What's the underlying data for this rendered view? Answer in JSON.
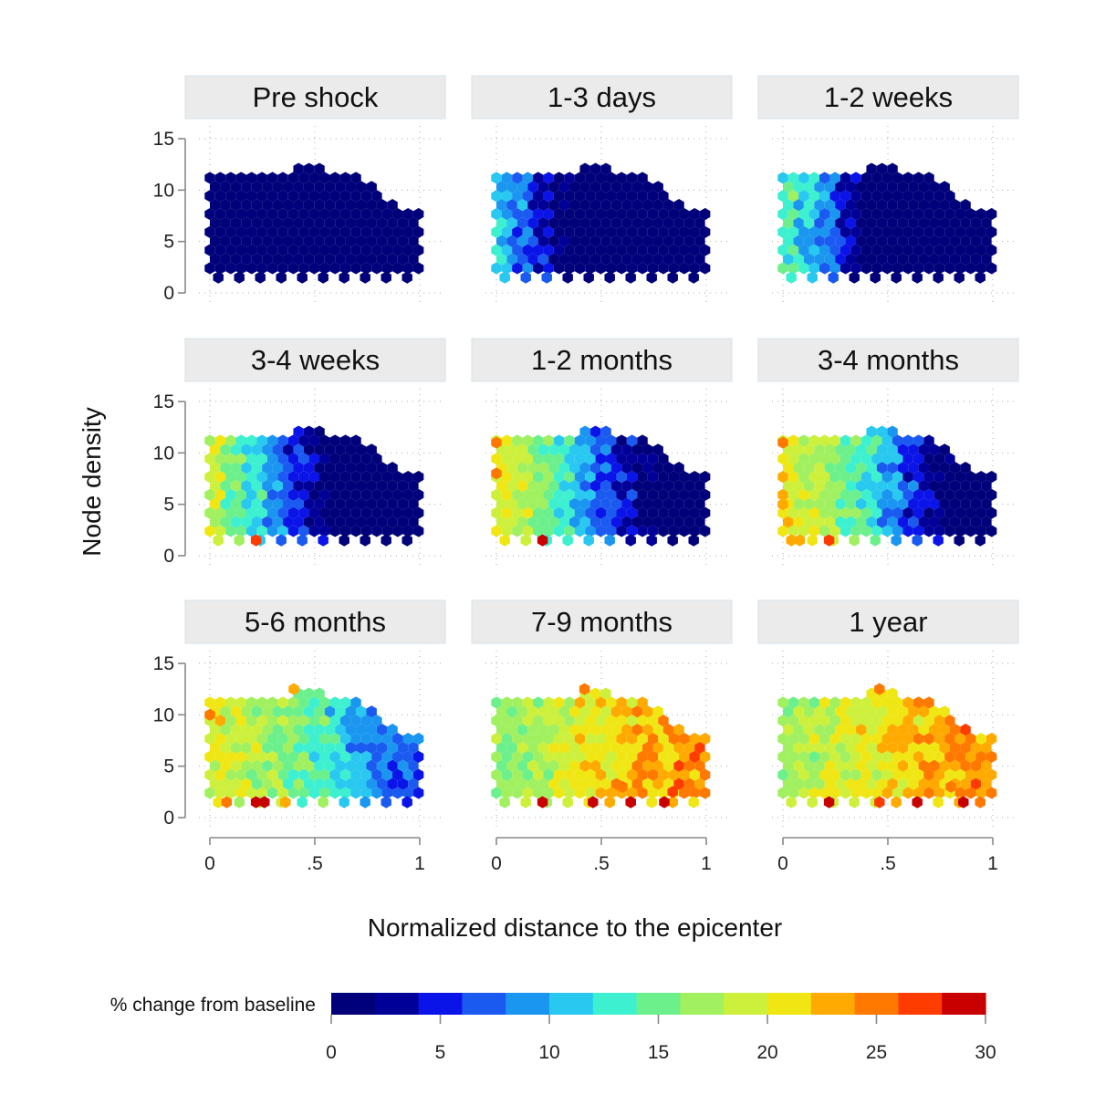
{
  "chart_data": {
    "type": "heatmap",
    "subtype": "hexbin-facets",
    "xlabel": "Normalized distance to the epicenter",
    "ylabel": "Node density",
    "xlim": [
      0,
      1
    ],
    "ylim": [
      0,
      15
    ],
    "x_ticks": [
      "0",
      ".5",
      "1"
    ],
    "y_ticks": [
      "0",
      "5",
      "10",
      "15"
    ],
    "grid": true,
    "panels": [
      {
        "title": "Pre shock",
        "gradient": [
          0,
          0,
          0,
          0,
          0,
          0,
          0,
          0,
          0,
          0,
          0
        ],
        "hot_spots": []
      },
      {
        "title": "1-3 days",
        "gradient": [
          11,
          8,
          5,
          1,
          0,
          0,
          0,
          0,
          0,
          0,
          0
        ],
        "hot_spots": []
      },
      {
        "title": "1-2 weeks",
        "gradient": [
          14,
          11,
          8,
          4,
          0,
          0,
          0,
          0,
          0,
          0,
          0
        ],
        "hot_spots": []
      },
      {
        "title": "3-4 weeks",
        "gradient": [
          19,
          15,
          12,
          8,
          5,
          3,
          0,
          0,
          0,
          0,
          0
        ],
        "hot_spots": [
          [
            0.22,
            1.5,
            26
          ]
        ]
      },
      {
        "title": "1-2 months",
        "gradient": [
          20,
          18,
          16,
          13,
          10,
          6,
          4,
          1,
          0,
          0,
          0
        ],
        "hot_spots": [
          [
            0.22,
            1.5,
            28
          ],
          [
            0.0,
            11.0,
            25
          ],
          [
            0.0,
            8.0,
            24
          ]
        ]
      },
      {
        "title": "3-4 months",
        "gradient": [
          21,
          19,
          17,
          15,
          13,
          9,
          6,
          3,
          1,
          0,
          0
        ],
        "hot_spots": [
          [
            0.22,
            1.5,
            26
          ],
          [
            0.08,
            1.5,
            23
          ],
          [
            0.0,
            11.0,
            24
          ],
          [
            0.0,
            5.0,
            23
          ]
        ]
      },
      {
        "title": "5-6 months",
        "gradient": [
          20,
          19,
          18,
          17,
          15,
          14,
          12,
          10,
          8,
          7,
          6
        ],
        "hot_spots": [
          [
            0.22,
            1.5,
            28
          ],
          [
            0.26,
            1.5,
            29
          ],
          [
            0.08,
            1.5,
            24
          ],
          [
            0.36,
            1.5,
            23
          ],
          [
            0.0,
            10.0,
            24
          ],
          [
            0.4,
            12.5,
            22
          ]
        ]
      },
      {
        "title": "7-9 months",
        "gradient": [
          16,
          17,
          18,
          19,
          20,
          21,
          22,
          23,
          23,
          24,
          24
        ],
        "hot_spots": [
          [
            0.22,
            1.5,
            28
          ],
          [
            0.46,
            1.5,
            28
          ],
          [
            0.64,
            1.5,
            29
          ],
          [
            0.8,
            1.5,
            29
          ],
          [
            0.42,
            12.5,
            24
          ],
          [
            0.6,
            3.0,
            25
          ],
          [
            0.84,
            2.5,
            26
          ]
        ]
      },
      {
        "title": "1 year",
        "gradient": [
          17,
          18,
          19,
          19,
          20,
          21,
          22,
          23,
          23,
          24,
          24
        ],
        "hot_spots": [
          [
            0.46,
            12.5,
            25
          ],
          [
            0.64,
            1.5,
            29
          ],
          [
            0.86,
            1.5,
            30
          ],
          [
            0.46,
            1.5,
            27
          ],
          [
            0.22,
            1.5,
            28
          ],
          [
            0.8,
            3.0,
            25
          ]
        ]
      }
    ],
    "legend": {
      "title": "% change from baseline",
      "ticks": [
        "0",
        "5",
        "10",
        "15",
        "20",
        "25",
        "30"
      ],
      "range": [
        0,
        30
      ],
      "colors": [
        "#00007a",
        "#000099",
        "#0a14e8",
        "#1a5af0",
        "#1a96f0",
        "#28c8f0",
        "#3cf0d0",
        "#6cf08c",
        "#a0f060",
        "#cdf03c",
        "#f0e614",
        "#ffaa00",
        "#ff7800",
        "#ff3c00",
        "#c80000"
      ],
      "placement": "bottom"
    }
  }
}
